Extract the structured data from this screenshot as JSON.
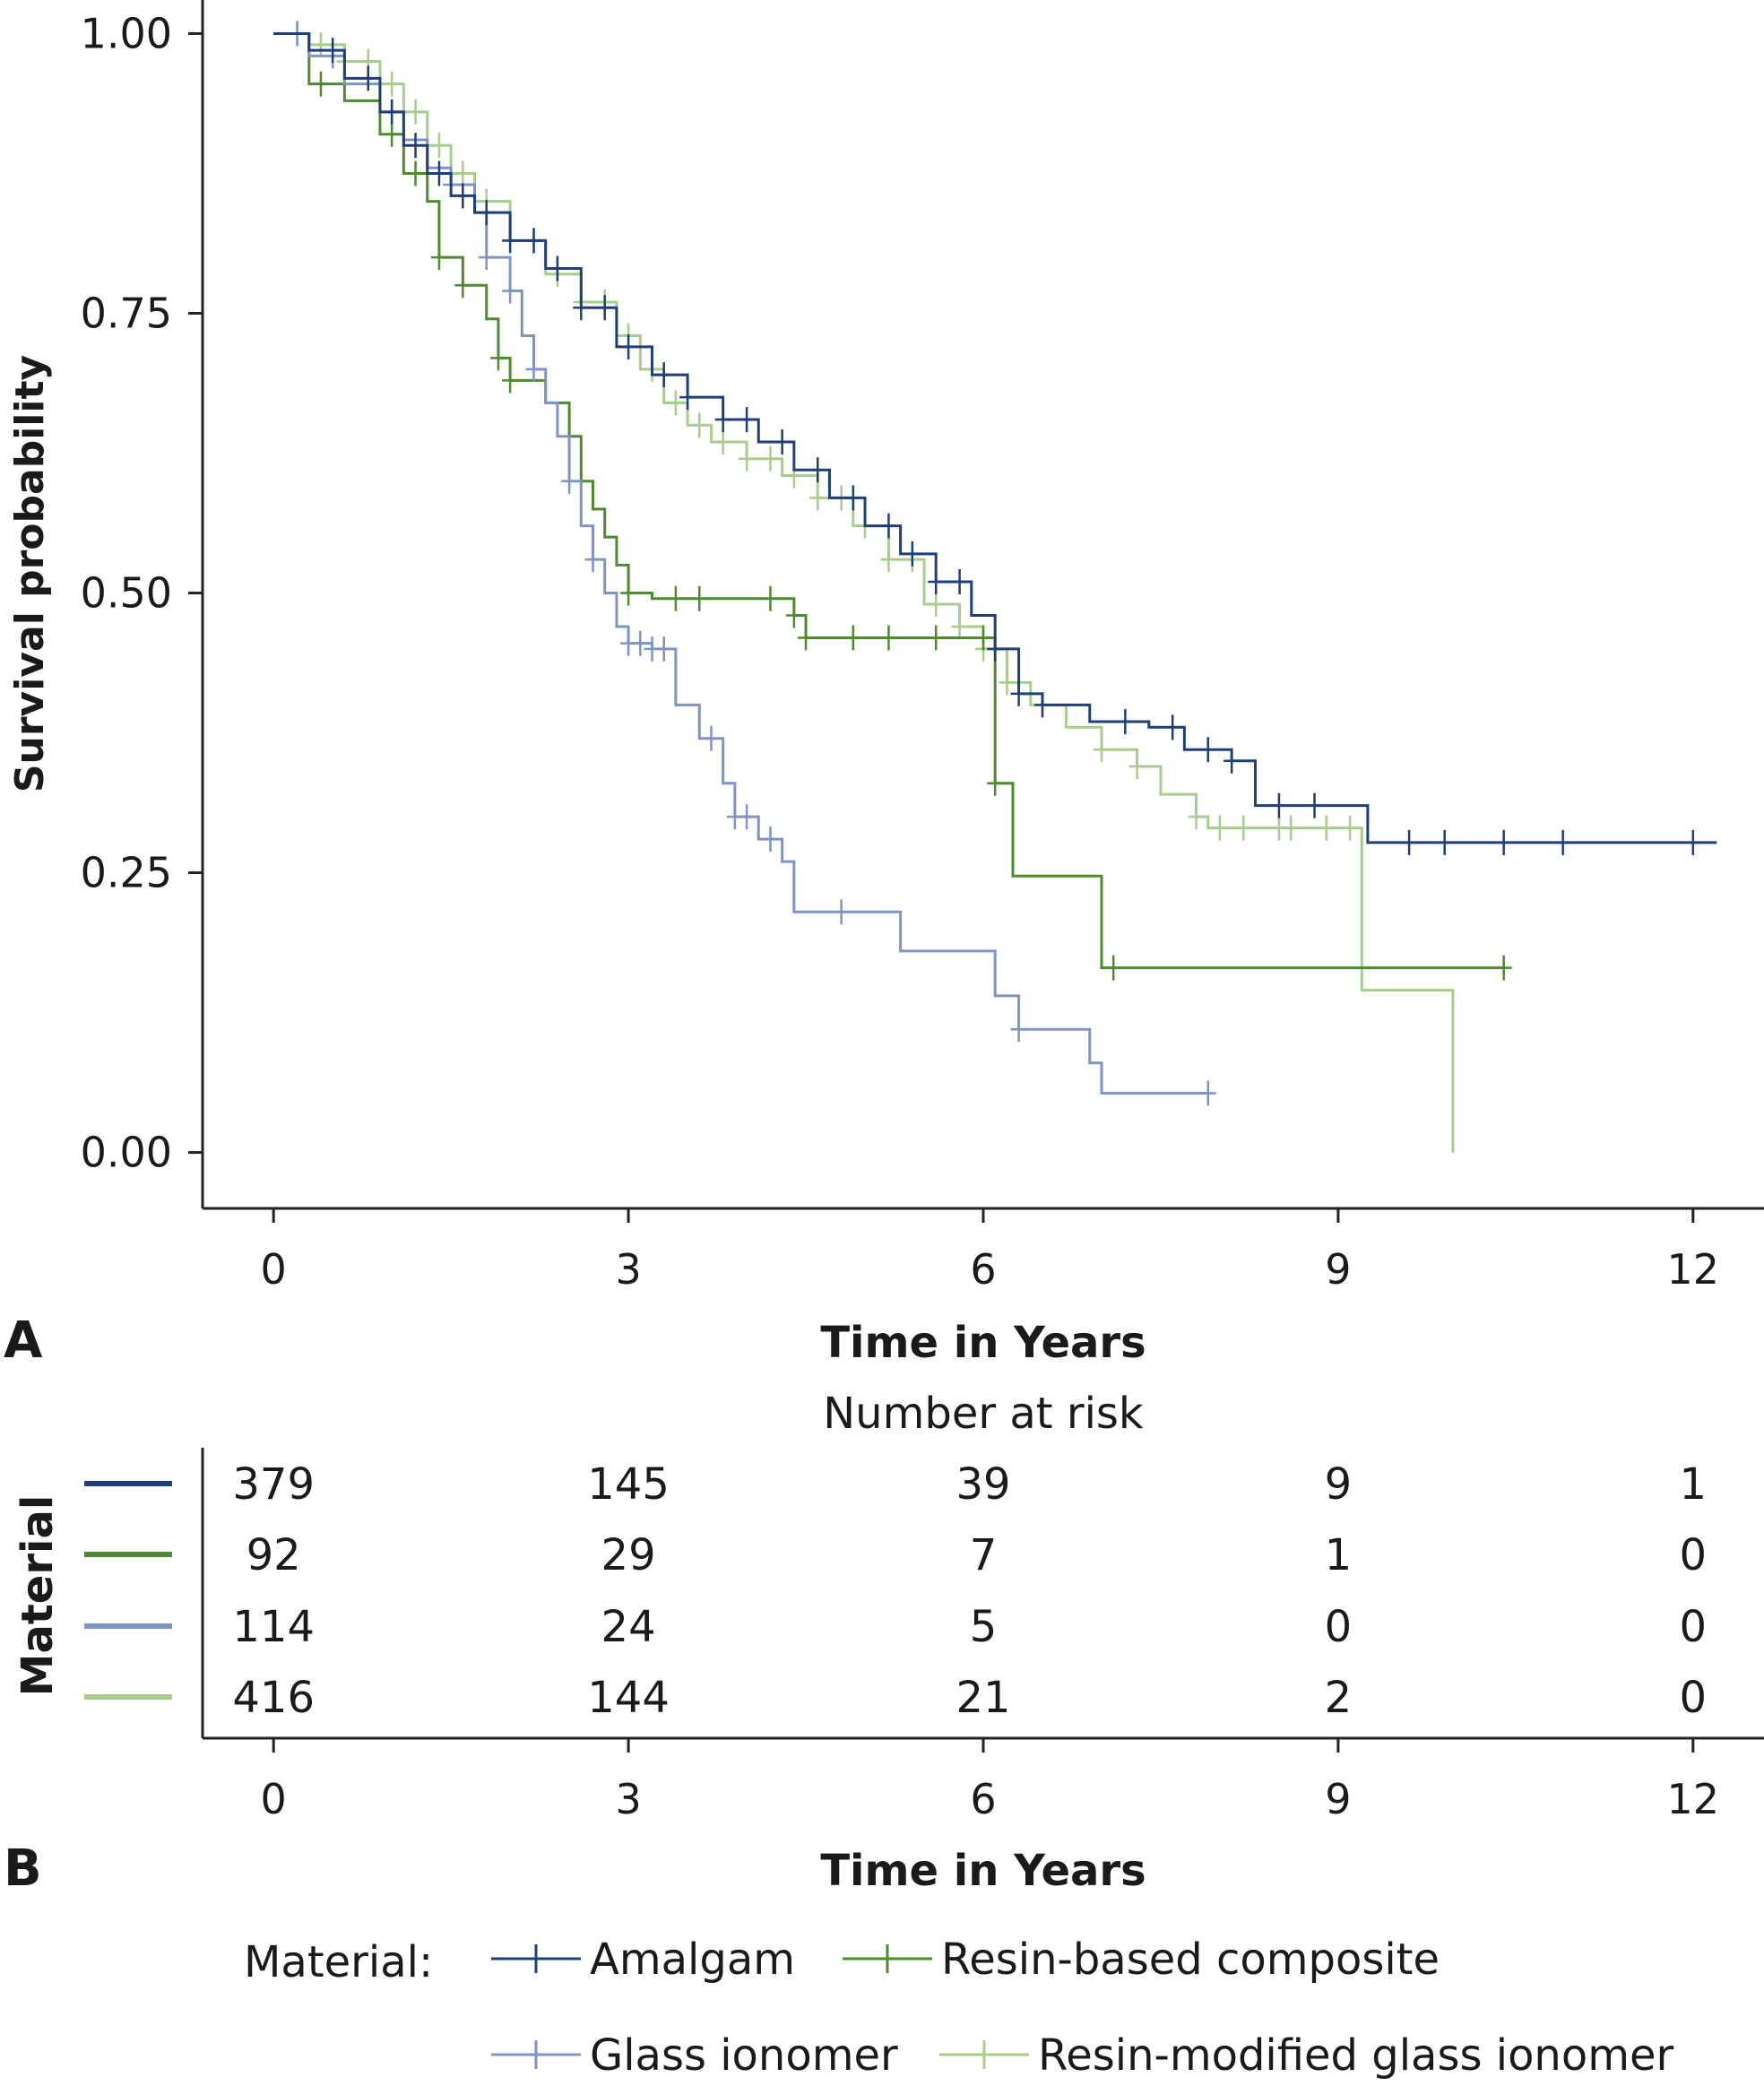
{
  "chart_data": [
    {
      "type": "line",
      "panel_label": "A",
      "xlabel": "Time in Years",
      "ylabel": "Survival probability",
      "xlim": [
        -0.6,
        12.6
      ],
      "ylim": [
        -0.05,
        1.03
      ],
      "x_ticks": [
        "0",
        "3",
        "6",
        "9",
        "12"
      ],
      "x_tick_values": [
        0,
        3,
        6,
        9,
        12
      ],
      "y_ticks": [
        "0.00",
        "0.25",
        "0.50",
        "0.75",
        "1.00"
      ],
      "y_tick_values": [
        0,
        0.25,
        0.5,
        0.75,
        1.0
      ],
      "grid": false,
      "series": [
        {
          "name": "Amalgam",
          "color": "#1f3f7a",
          "points": [
            [
              0,
              1.0
            ],
            [
              0.3,
              0.985
            ],
            [
              0.6,
              0.96
            ],
            [
              0.9,
              0.93
            ],
            [
              1.1,
              0.9
            ],
            [
              1.3,
              0.875
            ],
            [
              1.5,
              0.855
            ],
            [
              1.7,
              0.84
            ],
            [
              2.0,
              0.815
            ],
            [
              2.3,
              0.79
            ],
            [
              2.6,
              0.755
            ],
            [
              2.9,
              0.72
            ],
            [
              3.2,
              0.695
            ],
            [
              3.5,
              0.675
            ],
            [
              3.8,
              0.655
            ],
            [
              4.1,
              0.635
            ],
            [
              4.4,
              0.61
            ],
            [
              4.7,
              0.585
            ],
            [
              5.0,
              0.56
            ],
            [
              5.3,
              0.535
            ],
            [
              5.6,
              0.51
            ],
            [
              5.9,
              0.48
            ],
            [
              6.1,
              0.45
            ],
            [
              6.3,
              0.41
            ],
            [
              6.5,
              0.4
            ],
            [
              6.9,
              0.385
            ],
            [
              7.4,
              0.38
            ],
            [
              7.7,
              0.36
            ],
            [
              8.0,
              0.36
            ],
            [
              8.1,
              0.35
            ],
            [
              8.3,
              0.31
            ],
            [
              9.2,
              0.31
            ],
            [
              9.25,
              0.277
            ],
            [
              12.2,
              0.277
            ]
          ],
          "censor_x": [
            0.5,
            0.8,
            1.0,
            1.2,
            1.4,
            1.6,
            1.8,
            2.0,
            2.2,
            2.4,
            2.6,
            2.8,
            3.0,
            3.3,
            3.5,
            3.8,
            4.0,
            4.3,
            4.6,
            4.9,
            5.2,
            5.4,
            5.6,
            5.8,
            6.1,
            6.3,
            6.5,
            7.2,
            7.6,
            7.9,
            8.1,
            8.5,
            8.8,
            9.6,
            9.9,
            10.4,
            10.9,
            12.0
          ]
        },
        {
          "name": "Resin-based composite",
          "color": "#4f8a2e",
          "points": [
            [
              0,
              1.0
            ],
            [
              0.3,
              0.955
            ],
            [
              0.6,
              0.94
            ],
            [
              0.9,
              0.91
            ],
            [
              1.1,
              0.875
            ],
            [
              1.3,
              0.85
            ],
            [
              1.4,
              0.8
            ],
            [
              1.6,
              0.775
            ],
            [
              1.8,
              0.745
            ],
            [
              1.9,
              0.71
            ],
            [
              2.0,
              0.69
            ],
            [
              2.3,
              0.67
            ],
            [
              2.5,
              0.64
            ],
            [
              2.6,
              0.6
            ],
            [
              2.7,
              0.575
            ],
            [
              2.8,
              0.55
            ],
            [
              2.9,
              0.525
            ],
            [
              3.0,
              0.5
            ],
            [
              3.2,
              0.495
            ],
            [
              4.4,
              0.48
            ],
            [
              4.5,
              0.46
            ],
            [
              6.05,
              0.46
            ],
            [
              6.1,
              0.33
            ],
            [
              6.2,
              0.33
            ],
            [
              6.25,
              0.247
            ],
            [
              6.95,
              0.247
            ],
            [
              7.0,
              0.165
            ],
            [
              10.4,
              0.165
            ]
          ],
          "censor_x": [
            0.4,
            1.0,
            1.2,
            1.4,
            1.6,
            1.9,
            2.0,
            2.5,
            3.0,
            3.4,
            3.6,
            4.2,
            4.4,
            4.5,
            4.9,
            5.2,
            5.6,
            6.0,
            6.1,
            7.1,
            10.4
          ]
        },
        {
          "name": "Glass ionomer",
          "color": "#7f93c4",
          "points": [
            [
              0,
              1.0
            ],
            [
              0.3,
              0.98
            ],
            [
              0.6,
              0.955
            ],
            [
              0.9,
              0.93
            ],
            [
              1.1,
              0.905
            ],
            [
              1.3,
              0.88
            ],
            [
              1.5,
              0.865
            ],
            [
              1.7,
              0.84
            ],
            [
              1.8,
              0.8
            ],
            [
              2.0,
              0.77
            ],
            [
              2.1,
              0.73
            ],
            [
              2.2,
              0.7
            ],
            [
              2.3,
              0.67
            ],
            [
              2.4,
              0.64
            ],
            [
              2.5,
              0.6
            ],
            [
              2.6,
              0.56
            ],
            [
              2.7,
              0.53
            ],
            [
              2.8,
              0.5
            ],
            [
              2.9,
              0.47
            ],
            [
              3.0,
              0.455
            ],
            [
              3.2,
              0.45
            ],
            [
              3.4,
              0.4
            ],
            [
              3.6,
              0.37
            ],
            [
              3.8,
              0.33
            ],
            [
              3.9,
              0.3
            ],
            [
              4.1,
              0.28
            ],
            [
              4.3,
              0.26
            ],
            [
              4.4,
              0.215
            ],
            [
              5.3,
              0.18
            ],
            [
              6.1,
              0.14
            ],
            [
              6.3,
              0.11
            ],
            [
              6.9,
              0.08
            ],
            [
              7.0,
              0.053
            ],
            [
              7.9,
              0.053
            ]
          ],
          "censor_x": [
            0.2,
            0.5,
            1.0,
            1.5,
            1.8,
            2.0,
            2.2,
            2.5,
            2.7,
            3.0,
            3.1,
            3.2,
            3.3,
            3.7,
            3.9,
            4.0,
            4.2,
            4.8,
            6.3,
            7.9
          ]
        },
        {
          "name": "Resin-modified glass ionomer",
          "color": "#a8cc8a",
          "points": [
            [
              0,
              1.0
            ],
            [
              0.3,
              0.99
            ],
            [
              0.6,
              0.975
            ],
            [
              0.9,
              0.955
            ],
            [
              1.1,
              0.93
            ],
            [
              1.3,
              0.9
            ],
            [
              1.5,
              0.875
            ],
            [
              1.7,
              0.85
            ],
            [
              2.0,
              0.815
            ],
            [
              2.3,
              0.785
            ],
            [
              2.6,
              0.76
            ],
            [
              2.9,
              0.73
            ],
            [
              3.1,
              0.7
            ],
            [
              3.3,
              0.67
            ],
            [
              3.5,
              0.65
            ],
            [
              3.7,
              0.635
            ],
            [
              4.0,
              0.62
            ],
            [
              4.3,
              0.605
            ],
            [
              4.6,
              0.585
            ],
            [
              4.9,
              0.56
            ],
            [
              5.2,
              0.53
            ],
            [
              5.5,
              0.49
            ],
            [
              5.8,
              0.47
            ],
            [
              6.0,
              0.45
            ],
            [
              6.2,
              0.42
            ],
            [
              6.4,
              0.4
            ],
            [
              6.7,
              0.38
            ],
            [
              7.0,
              0.36
            ],
            [
              7.3,
              0.345
            ],
            [
              7.5,
              0.32
            ],
            [
              7.8,
              0.3
            ],
            [
              7.9,
              0.29
            ],
            [
              9.15,
              0.29
            ],
            [
              9.2,
              0.145
            ],
            [
              9.95,
              0.145
            ],
            [
              9.97,
              0.0
            ]
          ],
          "censor_x": [
            0.2,
            0.4,
            0.6,
            0.8,
            1.0,
            1.2,
            1.4,
            1.6,
            1.8,
            2.0,
            2.2,
            2.4,
            2.6,
            2.8,
            3.0,
            3.2,
            3.4,
            3.6,
            3.8,
            4.0,
            4.2,
            4.4,
            4.6,
            4.8,
            5.0,
            5.2,
            5.4,
            5.6,
            5.8,
            6.0,
            6.2,
            6.5,
            7.0,
            7.3,
            7.8,
            8.0,
            8.2,
            8.5,
            8.6,
            8.9,
            9.1
          ]
        }
      ]
    },
    {
      "type": "table",
      "panel_label": "B",
      "title": "Number at risk",
      "ylabel": "Material",
      "xlabel": "Time in Years",
      "xlim": [
        -0.6,
        12.6
      ],
      "x_ticks": [
        "0",
        "3",
        "6",
        "9",
        "12"
      ],
      "x_tick_values": [
        0,
        3,
        6,
        9,
        12
      ],
      "rows": [
        {
          "color": "#1f3f7a",
          "values": [
            "379",
            "145",
            "39",
            "9",
            "1"
          ]
        },
        {
          "color": "#4f8a2e",
          "values": [
            "92",
            "29",
            "7",
            "1",
            "0"
          ]
        },
        {
          "color": "#7f93c4",
          "values": [
            "114",
            "24",
            "5",
            "0",
            "0"
          ]
        },
        {
          "color": "#a8cc8a",
          "values": [
            "416",
            "144",
            "21",
            "2",
            "0"
          ]
        }
      ]
    }
  ],
  "legend": {
    "title": "Material:",
    "entries": [
      {
        "label": "Amalgam",
        "color": "#1f3f7a"
      },
      {
        "label": "Resin-based composite",
        "color": "#4f8a2e"
      },
      {
        "label": "Glass ionomer",
        "color": "#7f93c4"
      },
      {
        "label": "Resin-modified glass ionomer",
        "color": "#a8cc8a"
      }
    ]
  }
}
